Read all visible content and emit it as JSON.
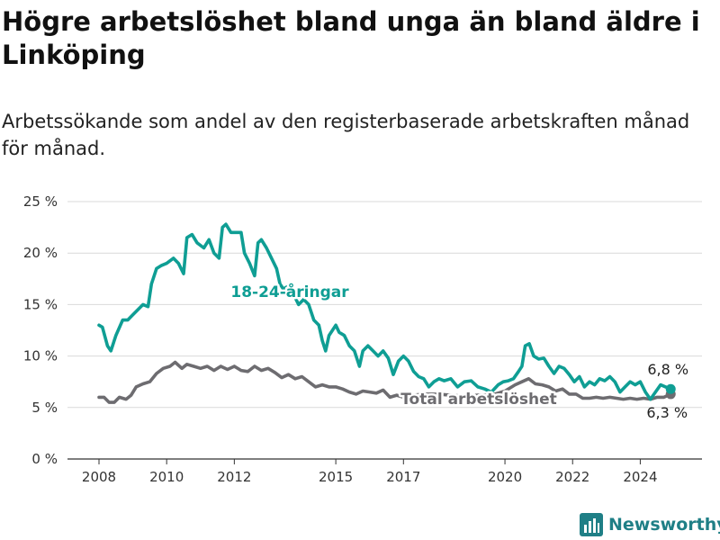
{
  "title": "Högre arbetslöshet bland unga än bland äldre i Linköping",
  "subtitle": "Arbetssökande som andel av den registerbaserade arbetskraften månad för månad.",
  "brand": {
    "name": "Newsworthy",
    "color": "#1f7f86"
  },
  "colors": {
    "youth": "#0f9e94",
    "total": "#6d6c70",
    "grid": "#d9d9d9",
    "axis": "#333333"
  },
  "chart_data": {
    "type": "line",
    "ylim": [
      0,
      25
    ],
    "xlim": [
      2008.0,
      2025.0
    ],
    "grid": true,
    "y_ticks": [
      {
        "value": 0,
        "label": "0 %"
      },
      {
        "value": 5,
        "label": "5 %"
      },
      {
        "value": 10,
        "label": "10 %"
      },
      {
        "value": 15,
        "label": "15 %"
      },
      {
        "value": 20,
        "label": "20 %"
      },
      {
        "value": 25,
        "label": "25 %"
      }
    ],
    "x_ticks": [
      {
        "value": 2008,
        "label": "2008"
      },
      {
        "value": 2010,
        "label": "2010"
      },
      {
        "value": 2012,
        "label": "2012"
      },
      {
        "value": 2015,
        "label": "2015"
      },
      {
        "value": 2017,
        "label": "2017"
      },
      {
        "value": 2020,
        "label": "2020"
      },
      {
        "value": 2022,
        "label": "2022"
      },
      {
        "value": 2024,
        "label": "2024"
      }
    ],
    "series": [
      {
        "name": "18-24-åringar",
        "color": "#0f9e94",
        "end_label": "6,8 %",
        "points": [
          [
            2008.0,
            13.0
          ],
          [
            2008.1,
            12.8
          ],
          [
            2008.25,
            11.0
          ],
          [
            2008.35,
            10.5
          ],
          [
            2008.5,
            12.0
          ],
          [
            2008.7,
            13.5
          ],
          [
            2008.85,
            13.5
          ],
          [
            2009.0,
            14.0
          ],
          [
            2009.15,
            14.5
          ],
          [
            2009.3,
            15.0
          ],
          [
            2009.45,
            14.8
          ],
          [
            2009.55,
            17.0
          ],
          [
            2009.7,
            18.5
          ],
          [
            2009.85,
            18.8
          ],
          [
            2010.0,
            19.0
          ],
          [
            2010.2,
            19.5
          ],
          [
            2010.35,
            19.0
          ],
          [
            2010.5,
            18.0
          ],
          [
            2010.6,
            21.5
          ],
          [
            2010.75,
            21.8
          ],
          [
            2010.9,
            21.0
          ],
          [
            2011.1,
            20.5
          ],
          [
            2011.25,
            21.3
          ],
          [
            2011.4,
            20.0
          ],
          [
            2011.55,
            19.5
          ],
          [
            2011.65,
            22.5
          ],
          [
            2011.75,
            22.8
          ],
          [
            2011.9,
            22.0
          ],
          [
            2012.05,
            22.0
          ],
          [
            2012.2,
            22.0
          ],
          [
            2012.3,
            20.0
          ],
          [
            2012.45,
            19.0
          ],
          [
            2012.6,
            17.8
          ],
          [
            2012.7,
            21.0
          ],
          [
            2012.8,
            21.3
          ],
          [
            2012.95,
            20.5
          ],
          [
            2013.1,
            19.5
          ],
          [
            2013.25,
            18.5
          ],
          [
            2013.35,
            17.0
          ],
          [
            2013.45,
            16.5
          ],
          [
            2013.6,
            16.8
          ],
          [
            2013.75,
            16.0
          ],
          [
            2013.9,
            15.0
          ],
          [
            2014.05,
            15.5
          ],
          [
            2014.2,
            15.0
          ],
          [
            2014.35,
            13.5
          ],
          [
            2014.5,
            13.0
          ],
          [
            2014.6,
            11.5
          ],
          [
            2014.7,
            10.5
          ],
          [
            2014.8,
            12.0
          ],
          [
            2014.9,
            12.5
          ],
          [
            2015.0,
            13.0
          ],
          [
            2015.1,
            12.3
          ],
          [
            2015.25,
            12.0
          ],
          [
            2015.4,
            11.0
          ],
          [
            2015.55,
            10.5
          ],
          [
            2015.7,
            9.0
          ],
          [
            2015.8,
            10.5
          ],
          [
            2015.95,
            11.0
          ],
          [
            2016.1,
            10.5
          ],
          [
            2016.25,
            10.0
          ],
          [
            2016.4,
            10.5
          ],
          [
            2016.55,
            9.8
          ],
          [
            2016.7,
            8.2
          ],
          [
            2016.85,
            9.5
          ],
          [
            2017.0,
            10.0
          ],
          [
            2017.15,
            9.5
          ],
          [
            2017.3,
            8.5
          ],
          [
            2017.45,
            8.0
          ],
          [
            2017.6,
            7.8
          ],
          [
            2017.75,
            7.0
          ],
          [
            2017.9,
            7.5
          ],
          [
            2018.05,
            7.8
          ],
          [
            2018.2,
            7.6
          ],
          [
            2018.4,
            7.8
          ],
          [
            2018.6,
            7.0
          ],
          [
            2018.8,
            7.5
          ],
          [
            2019.0,
            7.6
          ],
          [
            2019.2,
            7.0
          ],
          [
            2019.4,
            6.8
          ],
          [
            2019.6,
            6.5
          ],
          [
            2019.8,
            7.2
          ],
          [
            2019.95,
            7.5
          ],
          [
            2020.1,
            7.6
          ],
          [
            2020.25,
            7.8
          ],
          [
            2020.4,
            8.5
          ],
          [
            2020.5,
            9.0
          ],
          [
            2020.6,
            11.0
          ],
          [
            2020.72,
            11.2
          ],
          [
            2020.85,
            10.0
          ],
          [
            2021.0,
            9.7
          ],
          [
            2021.15,
            9.8
          ],
          [
            2021.3,
            9.0
          ],
          [
            2021.45,
            8.3
          ],
          [
            2021.6,
            9.0
          ],
          [
            2021.75,
            8.8
          ],
          [
            2021.9,
            8.2
          ],
          [
            2022.05,
            7.5
          ],
          [
            2022.2,
            8.0
          ],
          [
            2022.35,
            7.0
          ],
          [
            2022.5,
            7.5
          ],
          [
            2022.65,
            7.2
          ],
          [
            2022.8,
            7.8
          ],
          [
            2022.95,
            7.6
          ],
          [
            2023.1,
            8.0
          ],
          [
            2023.25,
            7.5
          ],
          [
            2023.4,
            6.5
          ],
          [
            2023.55,
            7.0
          ],
          [
            2023.7,
            7.5
          ],
          [
            2023.85,
            7.2
          ],
          [
            2024.0,
            7.5
          ],
          [
            2024.15,
            6.5
          ],
          [
            2024.3,
            5.8
          ],
          [
            2024.45,
            6.5
          ],
          [
            2024.6,
            7.2
          ],
          [
            2024.75,
            7.0
          ],
          [
            2024.9,
            6.8
          ]
        ]
      },
      {
        "name": "Total arbetslöshet",
        "color": "#6d6c70",
        "end_label": "6,3 %",
        "points": [
          [
            2008.0,
            6.0
          ],
          [
            2008.15,
            6.0
          ],
          [
            2008.3,
            5.5
          ],
          [
            2008.45,
            5.5
          ],
          [
            2008.6,
            6.0
          ],
          [
            2008.8,
            5.8
          ],
          [
            2008.95,
            6.2
          ],
          [
            2009.1,
            7.0
          ],
          [
            2009.3,
            7.3
          ],
          [
            2009.5,
            7.5
          ],
          [
            2009.7,
            8.3
          ],
          [
            2009.9,
            8.8
          ],
          [
            2010.1,
            9.0
          ],
          [
            2010.25,
            9.4
          ],
          [
            2010.45,
            8.8
          ],
          [
            2010.6,
            9.2
          ],
          [
            2010.8,
            9.0
          ],
          [
            2011.0,
            8.8
          ],
          [
            2011.2,
            9.0
          ],
          [
            2011.4,
            8.6
          ],
          [
            2011.6,
            9.0
          ],
          [
            2011.8,
            8.7
          ],
          [
            2012.0,
            9.0
          ],
          [
            2012.2,
            8.6
          ],
          [
            2012.4,
            8.5
          ],
          [
            2012.6,
            9.0
          ],
          [
            2012.8,
            8.6
          ],
          [
            2013.0,
            8.8
          ],
          [
            2013.2,
            8.4
          ],
          [
            2013.4,
            7.9
          ],
          [
            2013.6,
            8.2
          ],
          [
            2013.8,
            7.8
          ],
          [
            2014.0,
            8.0
          ],
          [
            2014.2,
            7.5
          ],
          [
            2014.4,
            7.0
          ],
          [
            2014.6,
            7.2
          ],
          [
            2014.8,
            7.0
          ],
          [
            2015.0,
            7.0
          ],
          [
            2015.2,
            6.8
          ],
          [
            2015.4,
            6.5
          ],
          [
            2015.6,
            6.3
          ],
          [
            2015.8,
            6.6
          ],
          [
            2016.0,
            6.5
          ],
          [
            2016.2,
            6.4
          ],
          [
            2016.4,
            6.7
          ],
          [
            2016.6,
            6.0
          ],
          [
            2016.8,
            6.2
          ],
          [
            2017.0,
            6.0
          ],
          [
            2017.3,
            6.2
          ],
          [
            2017.6,
            6.3
          ],
          [
            2018.0,
            6.3
          ],
          [
            2018.4,
            6.2
          ],
          [
            2018.8,
            6.1
          ],
          [
            2019.2,
            6.2
          ],
          [
            2019.6,
            6.2
          ],
          [
            2020.0,
            6.6
          ],
          [
            2020.3,
            7.2
          ],
          [
            2020.5,
            7.5
          ],
          [
            2020.7,
            7.8
          ],
          [
            2020.9,
            7.3
          ],
          [
            2021.1,
            7.2
          ],
          [
            2021.3,
            7.0
          ],
          [
            2021.5,
            6.6
          ],
          [
            2021.7,
            6.8
          ],
          [
            2021.9,
            6.3
          ],
          [
            2022.1,
            6.3
          ],
          [
            2022.3,
            5.9
          ],
          [
            2022.5,
            5.9
          ],
          [
            2022.7,
            6.0
          ],
          [
            2022.9,
            5.9
          ],
          [
            2023.1,
            6.0
          ],
          [
            2023.3,
            5.9
          ],
          [
            2023.5,
            5.8
          ],
          [
            2023.7,
            5.9
          ],
          [
            2023.9,
            5.8
          ],
          [
            2024.1,
            5.9
          ],
          [
            2024.3,
            5.8
          ],
          [
            2024.5,
            6.0
          ],
          [
            2024.7,
            6.0
          ],
          [
            2024.9,
            6.3
          ]
        ]
      }
    ]
  }
}
